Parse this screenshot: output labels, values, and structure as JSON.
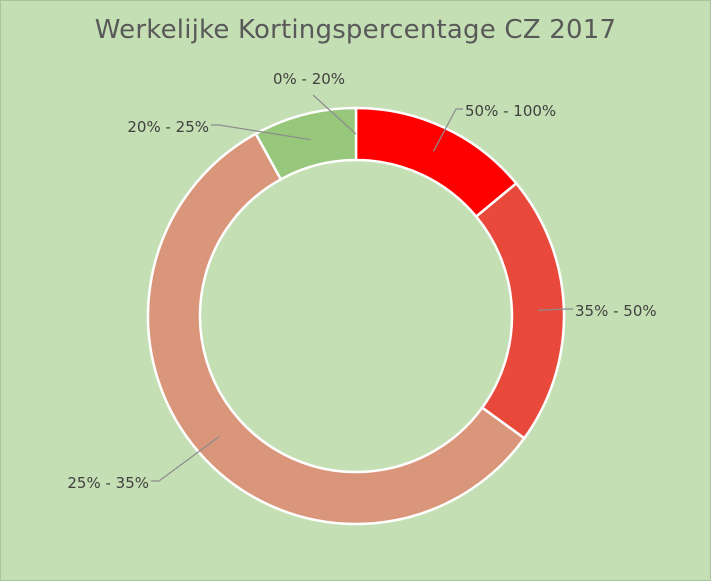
{
  "chart_data": {
    "type": "pie",
    "variant": "donut",
    "title": "Werkelijke Kortingspercentage CZ 2017",
    "categories": [
      "50% - 100%",
      "35% - 50%",
      "25% - 35%",
      "20% - 25%",
      "0% - 20%"
    ],
    "values": [
      14,
      21,
      57,
      8,
      0
    ],
    "colors": [
      "#ff0000",
      "#e8493a",
      "#da967a",
      "#97c77b",
      "#97c77b"
    ],
    "legend": "none",
    "data_labels": "category names with leader lines"
  }
}
